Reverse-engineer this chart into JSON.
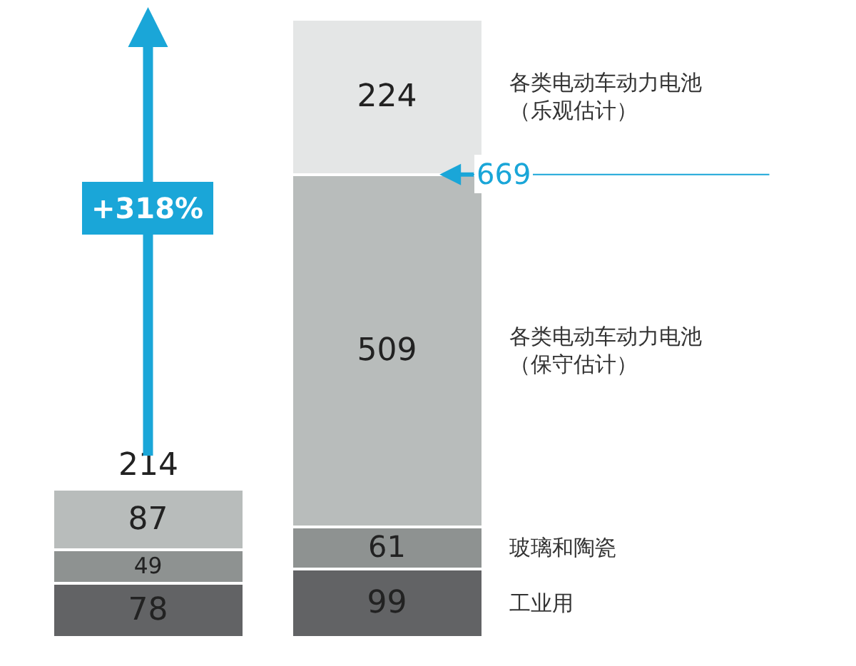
{
  "chart_data": {
    "type": "bar",
    "stacked": true,
    "categories": [
      null,
      null
    ],
    "series": [
      {
        "name": "工业用",
        "color": "#626365",
        "values": [
          78,
          99
        ]
      },
      {
        "name": "玻璃和陶瓷",
        "color": "#8e9291",
        "values": [
          49,
          61
        ]
      },
      {
        "name": "各类电动车动力电池（保守估计）",
        "color": "#b8bcbb",
        "values": [
          87,
          509
        ]
      },
      {
        "name": "各类电动车动力电池（乐观估计）",
        "color": "#e4e6e6",
        "values": [
          null,
          224
        ]
      }
    ],
    "data_labels": true,
    "totals": [
      "214",
      null
    ],
    "ref_lines": [
      {
        "axis": "y",
        "value": 669,
        "label": "669",
        "color": "#1aa6d8"
      }
    ],
    "annotations": [
      "+318%"
    ],
    "legend": false
  }
}
